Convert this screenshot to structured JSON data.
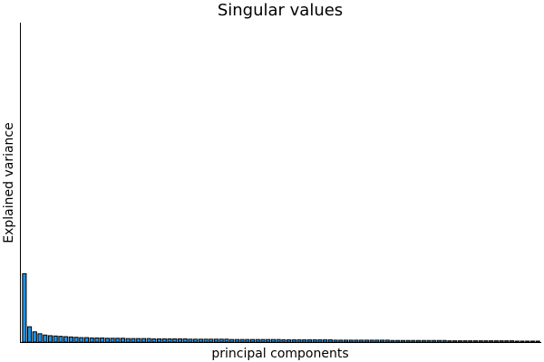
{
  "chart_data": {
    "type": "bar",
    "title": "Singular values",
    "xlabel": "principal components",
    "ylabel": "Explained variance",
    "grid": false,
    "legend": "none",
    "ylim": [
      0,
      1
    ],
    "bar_color": "#1f8fe0",
    "values": [
      0.214,
      0.048,
      0.032,
      0.026,
      0.022,
      0.02,
      0.019,
      0.018,
      0.017,
      0.016,
      0.015,
      0.014,
      0.014,
      0.013,
      0.013,
      0.013,
      0.012,
      0.012,
      0.012,
      0.012,
      0.011,
      0.011,
      0.011,
      0.011,
      0.011,
      0.01,
      0.01,
      0.01,
      0.01,
      0.01,
      0.01,
      0.01,
      0.009,
      0.009,
      0.009,
      0.009,
      0.009,
      0.009,
      0.009,
      0.009,
      0.008,
      0.008,
      0.008,
      0.008,
      0.008,
      0.008,
      0.008,
      0.008,
      0.008,
      0.008,
      0.007,
      0.007,
      0.007,
      0.007,
      0.007,
      0.007,
      0.007,
      0.007,
      0.007,
      0.007,
      0.006,
      0.006,
      0.006,
      0.006,
      0.006,
      0.006,
      0.006,
      0.006,
      0.006,
      0.006,
      0.006,
      0.005,
      0.005,
      0.005,
      0.005,
      0.005,
      0.005,
      0.005,
      0.005,
      0.005,
      0.005,
      0.005,
      0.004,
      0.004,
      0.004,
      0.004,
      0.004,
      0.004,
      0.004,
      0.004,
      0.004,
      0.004,
      0.004,
      0.004,
      0.004,
      0.003,
      0.003,
      0.003,
      0.003,
      0.003
    ]
  }
}
